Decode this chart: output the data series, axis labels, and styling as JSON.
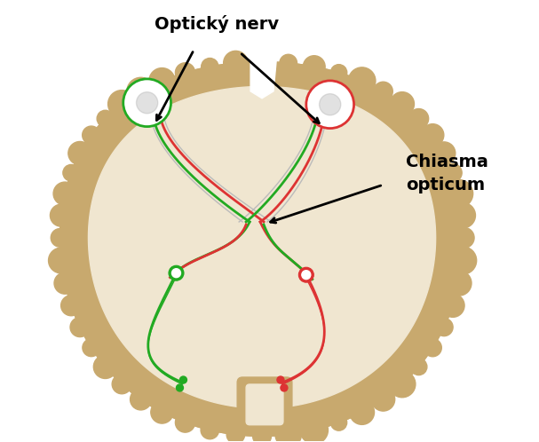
{
  "bg_color": "#ffffff",
  "brain_outer_color": "#c8a96e",
  "brain_inner_color": "#f0e6d0",
  "label_optic_nerv": "Optický nerv",
  "label_chiasma": "Chiasma\nopticum",
  "label_fontsize": 14,
  "green_color": "#22aa22",
  "red_color": "#dd3333",
  "gray_color": "#888888",
  "white_color": "#ffffff",
  "line_width": 2.0
}
